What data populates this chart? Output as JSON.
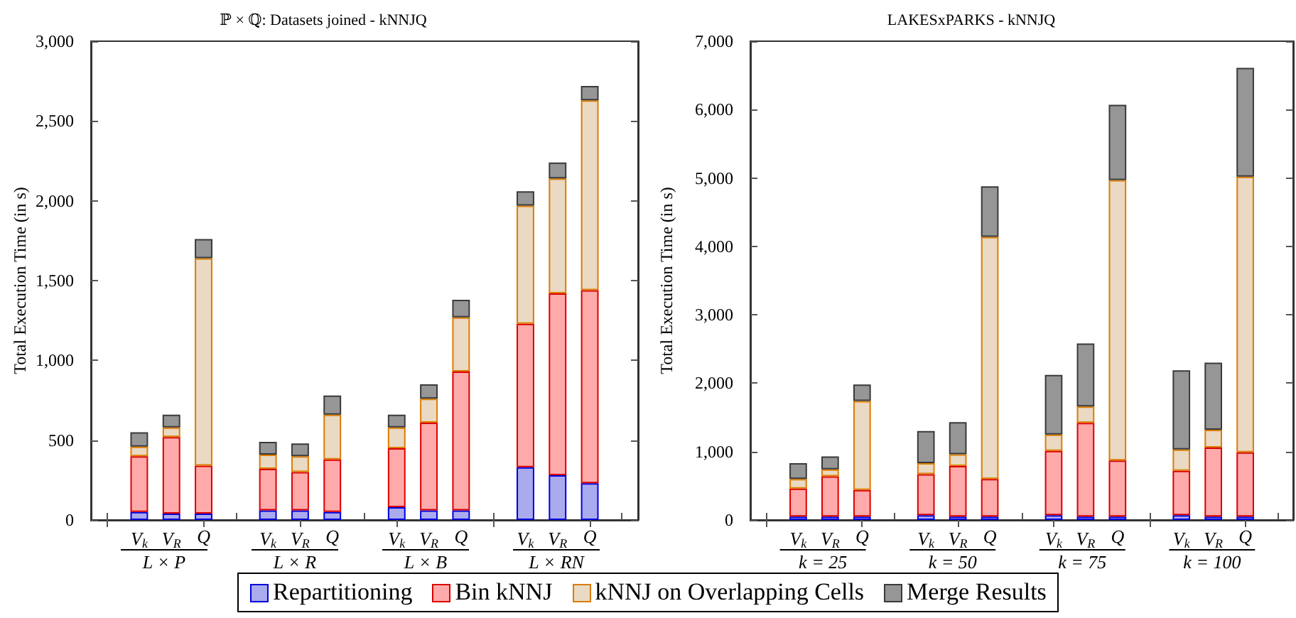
{
  "chart_data": [
    {
      "type": "bar",
      "title": "ℙ × ℚ: Datasets joined - kNNJQ",
      "ylabel": "Total Execution Time (in s)",
      "stacked": true,
      "legend": "bottom",
      "grid": false,
      "categories": [
        null,
        "V$_{k}$",
        "V$_{R}$",
        "Q",
        null,
        "V$_{k}$",
        "V$_{R}$",
        "Q",
        null,
        "V$_{k}$",
        "V$_{R}$",
        "Q",
        null,
        "V$_{k}$",
        "V$_{R}$",
        "Q",
        null
      ],
      "annotations": [
        "L × P",
        "L × R",
        "L × B",
        "L × RN"
      ],
      "ylim": [
        0,
        3000
      ],
      "yticks": [
        {
          "value": 0,
          "label": "0"
        },
        {
          "value": 500,
          "label": "500"
        },
        {
          "value": 1000,
          "label": "1,000"
        },
        {
          "value": 1500,
          "label": "1,500"
        },
        {
          "value": 2000,
          "label": "2,000"
        },
        {
          "value": 2500,
          "label": "2,500"
        },
        {
          "value": 3000,
          "label": "3,000"
        }
      ],
      "series": [
        {
          "name": "Repartitioning",
          "color": "#aaaaee",
          "values": [
            null,
            50,
            40,
            40,
            null,
            60,
            60,
            50,
            null,
            80,
            60,
            60,
            null,
            330,
            280,
            230,
            null
          ]
        },
        {
          "name": "Bin kNNJ",
          "color": "#ffaaaa",
          "values": [
            null,
            350,
            480,
            300,
            null,
            260,
            240,
            330,
            null,
            370,
            550,
            870,
            null,
            900,
            1140,
            1210,
            null
          ]
        },
        {
          "name": "kNNJ on Overlapping Cells",
          "color": "#ead9c3",
          "values": [
            null,
            60,
            60,
            1300,
            null,
            90,
            100,
            280,
            null,
            130,
            150,
            340,
            null,
            740,
            720,
            1190,
            null
          ]
        },
        {
          "name": "Merge Results",
          "color": "#969696",
          "values": [
            null,
            90,
            80,
            120,
            null,
            80,
            80,
            120,
            null,
            80,
            90,
            110,
            null,
            90,
            100,
            90,
            null
          ]
        }
      ]
    },
    {
      "type": "bar",
      "title": "LAKESxPARKS - kNNJQ",
      "ylabel": "Total Execution Time (in s)",
      "stacked": true,
      "legend": "bottom",
      "grid": false,
      "categories": [
        null,
        "V$_{k}$",
        "V$_{R}$",
        "Q",
        null,
        "V$_{k}$",
        "V$_{R}$",
        "Q",
        null,
        "V$_{k}$",
        "V$_{R}$",
        "Q",
        null,
        "V$_{k}$",
        "V$_{R}$",
        "Q",
        null
      ],
      "annotations": [
        "k = 25",
        "k = 50",
        "k = 75",
        "k = 100"
      ],
      "ylim": [
        0,
        7000
      ],
      "yticks": [
        {
          "value": 0,
          "label": "0"
        },
        {
          "value": 1000,
          "label": "1,000"
        },
        {
          "value": 2000,
          "label": "2,000"
        },
        {
          "value": 3000,
          "label": "3,000"
        },
        {
          "value": 4000,
          "label": "4,000"
        },
        {
          "value": 5000,
          "label": "5,000"
        },
        {
          "value": 6000,
          "label": "6,000"
        },
        {
          "value": 7000,
          "label": "7,000"
        }
      ],
      "series": [
        {
          "name": "Repartitioning",
          "color": "#aaaaee",
          "values": [
            null,
            50,
            50,
            50,
            null,
            70,
            50,
            50,
            null,
            70,
            50,
            50,
            null,
            70,
            50,
            50,
            null
          ]
        },
        {
          "name": "Bin kNNJ",
          "color": "#ffaaaa",
          "values": [
            null,
            410,
            590,
            390,
            null,
            600,
            740,
            550,
            null,
            940,
            1370,
            820,
            null,
            650,
            1010,
            940,
            null
          ]
        },
        {
          "name": "kNNJ on Overlapping Cells",
          "color": "#ead9c3",
          "values": [
            null,
            140,
            100,
            1300,
            null,
            160,
            170,
            3540,
            null,
            240,
            240,
            4100,
            null,
            310,
            260,
            4030,
            null
          ]
        },
        {
          "name": "Merge Results",
          "color": "#969696",
          "values": [
            null,
            230,
            190,
            240,
            null,
            470,
            470,
            740,
            null,
            870,
            920,
            1100,
            null,
            1160,
            980,
            1590,
            null
          ]
        }
      ]
    }
  ]
}
